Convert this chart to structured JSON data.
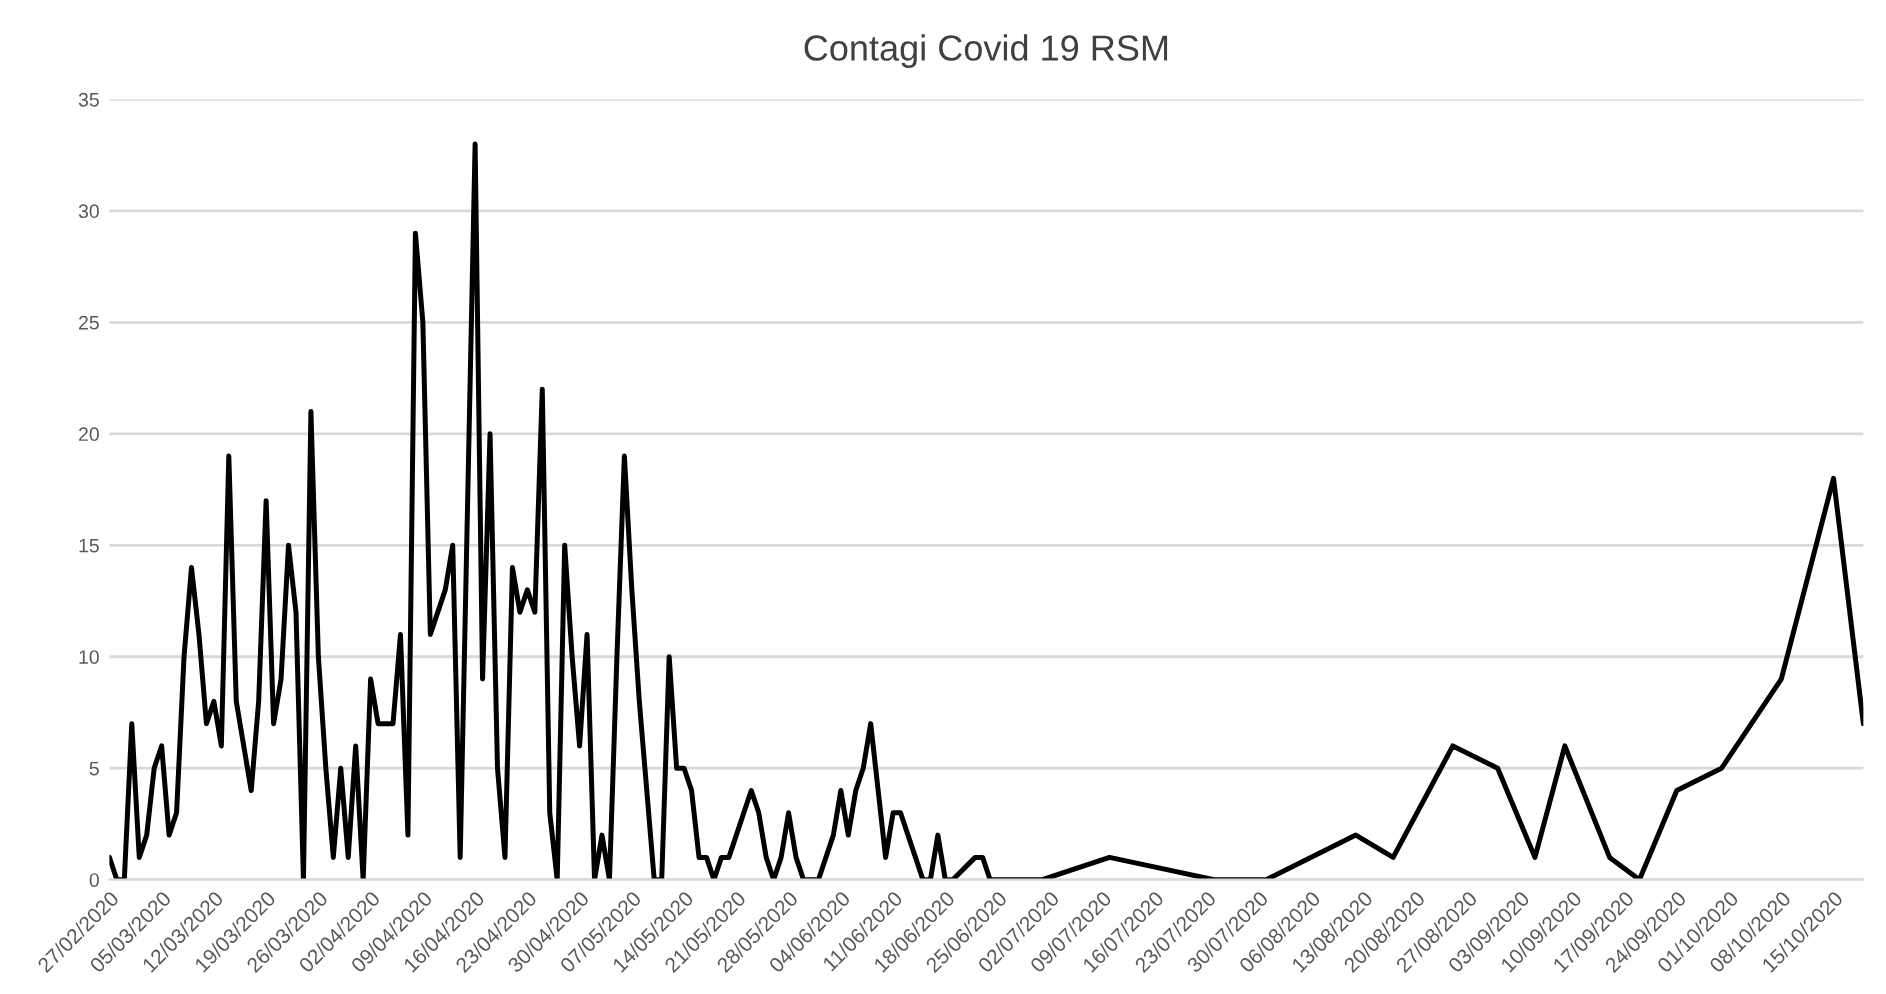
{
  "chart_data": {
    "type": "line",
    "title": "Contagi Covid 19 RSM",
    "x": [
      "2020-02-27",
      "2020-02-28",
      "2020-02-29",
      "2020-03-01",
      "2020-03-02",
      "2020-03-03",
      "2020-03-04",
      "2020-03-05",
      "2020-03-06",
      "2020-03-07",
      "2020-03-08",
      "2020-03-09",
      "2020-03-10",
      "2020-03-11",
      "2020-03-12",
      "2020-03-13",
      "2020-03-14",
      "2020-03-15",
      "2020-03-16",
      "2020-03-17",
      "2020-03-18",
      "2020-03-19",
      "2020-03-20",
      "2020-03-21",
      "2020-03-22",
      "2020-03-23",
      "2020-03-24",
      "2020-03-25",
      "2020-03-26",
      "2020-03-27",
      "2020-03-28",
      "2020-03-29",
      "2020-03-30",
      "2020-03-31",
      "2020-04-01",
      "2020-04-02",
      "2020-04-03",
      "2020-04-04",
      "2020-04-05",
      "2020-04-06",
      "2020-04-07",
      "2020-04-08",
      "2020-04-09",
      "2020-04-10",
      "2020-04-11",
      "2020-04-12",
      "2020-04-13",
      "2020-04-14",
      "2020-04-16",
      "2020-04-17",
      "2020-04-18",
      "2020-04-19",
      "2020-04-20",
      "2020-04-21",
      "2020-04-22",
      "2020-04-23",
      "2020-04-24",
      "2020-04-25",
      "2020-04-26",
      "2020-04-27",
      "2020-04-28",
      "2020-04-29",
      "2020-04-30",
      "2020-05-01",
      "2020-05-02",
      "2020-05-03",
      "2020-05-04",
      "2020-05-05",
      "2020-05-06",
      "2020-05-07",
      "2020-05-08",
      "2020-05-09",
      "2020-05-10",
      "2020-05-11",
      "2020-05-12",
      "2020-05-13",
      "2020-05-14",
      "2020-05-15",
      "2020-05-16",
      "2020-05-17",
      "2020-05-18",
      "2020-05-19",
      "2020-05-20",
      "2020-05-21",
      "2020-05-22",
      "2020-05-23",
      "2020-05-24",
      "2020-05-25",
      "2020-05-26",
      "2020-05-27",
      "2020-05-28",
      "2020-05-29",
      "2020-05-30",
      "2020-05-31",
      "2020-06-01",
      "2020-06-02",
      "2020-06-03",
      "2020-06-04",
      "2020-06-05",
      "2020-06-06",
      "2020-06-07",
      "2020-06-08",
      "2020-06-09",
      "2020-06-10",
      "2020-06-11",
      "2020-06-12",
      "2020-06-13",
      "2020-06-14",
      "2020-06-15",
      "2020-06-16",
      "2020-06-17",
      "2020-06-18",
      "2020-06-19",
      "2020-06-22",
      "2020-06-23",
      "2020-06-24",
      "2020-07-01",
      "2020-07-10",
      "2020-07-24",
      "2020-07-31",
      "2020-08-12",
      "2020-08-17",
      "2020-08-25",
      "2020-08-31",
      "2020-09-05",
      "2020-09-09",
      "2020-09-15",
      "2020-09-19",
      "2020-09-24",
      "2020-09-30",
      "2020-10-08",
      "2020-10-15",
      "2020-10-19"
    ],
    "series": [
      {
        "color": "#000000",
        "values": [
          1,
          0,
          0,
          7,
          1,
          2,
          5,
          6,
          2,
          3,
          10,
          14,
          11,
          7,
          8,
          6,
          19,
          8,
          6,
          4,
          8,
          17,
          7,
          9,
          15,
          12,
          0,
          21,
          10,
          5,
          1,
          5,
          1,
          6,
          0,
          9,
          7,
          7,
          7,
          11,
          2,
          29,
          25,
          11,
          12,
          13,
          15,
          1,
          33,
          9,
          20,
          5,
          1,
          14,
          12,
          13,
          12,
          22,
          3,
          0,
          15,
          10,
          6,
          11,
          0,
          2,
          0,
          10,
          19,
          13,
          8,
          4,
          0,
          0,
          10,
          5,
          5,
          4,
          1,
          1,
          0,
          1,
          1,
          2,
          3,
          4,
          3,
          1,
          0,
          1,
          3,
          1,
          0,
          0,
          0,
          1,
          2,
          4,
          2,
          4,
          5,
          7,
          4,
          1,
          3,
          3,
          2,
          1,
          0,
          0,
          2,
          0,
          0,
          1,
          1,
          0,
          0,
          1,
          0,
          0,
          2,
          1,
          6,
          5,
          1,
          6,
          1,
          0,
          4,
          5,
          9,
          18,
          7
        ]
      }
    ],
    "xlim": [
      "2020-02-27",
      "2020-10-19"
    ],
    "xticks": [
      {
        "value": "2020-02-27",
        "label": "27/02/2020"
      },
      {
        "value": "2020-03-05",
        "label": "05/03/2020"
      },
      {
        "value": "2020-03-12",
        "label": "12/03/2020"
      },
      {
        "value": "2020-03-19",
        "label": "19/03/2020"
      },
      {
        "value": "2020-03-26",
        "label": "26/03/2020"
      },
      {
        "value": "2020-04-02",
        "label": "02/04/2020"
      },
      {
        "value": "2020-04-09",
        "label": "09/04/2020"
      },
      {
        "value": "2020-04-16",
        "label": "16/04/2020"
      },
      {
        "value": "2020-04-23",
        "label": "23/04/2020"
      },
      {
        "value": "2020-04-30",
        "label": "30/04/2020"
      },
      {
        "value": "2020-05-07",
        "label": "07/05/2020"
      },
      {
        "value": "2020-05-14",
        "label": "14/05/2020"
      },
      {
        "value": "2020-05-21",
        "label": "21/05/2020"
      },
      {
        "value": "2020-05-28",
        "label": "28/05/2020"
      },
      {
        "value": "2020-06-04",
        "label": "04/06/2020"
      },
      {
        "value": "2020-06-11",
        "label": "11/06/2020"
      },
      {
        "value": "2020-06-18",
        "label": "18/06/2020"
      },
      {
        "value": "2020-06-25",
        "label": "25/06/2020"
      },
      {
        "value": "2020-07-02",
        "label": "02/07/2020"
      },
      {
        "value": "2020-07-09",
        "label": "09/07/2020"
      },
      {
        "value": "2020-07-16",
        "label": "16/07/2020"
      },
      {
        "value": "2020-07-23",
        "label": "23/07/2020"
      },
      {
        "value": "2020-07-30",
        "label": "30/07/2020"
      },
      {
        "value": "2020-08-06",
        "label": "06/08/2020"
      },
      {
        "value": "2020-08-13",
        "label": "13/08/2020"
      },
      {
        "value": "2020-08-20",
        "label": "20/08/2020"
      },
      {
        "value": "2020-08-27",
        "label": "27/08/2020"
      },
      {
        "value": "2020-09-03",
        "label": "03/09/2020"
      },
      {
        "value": "2020-09-10",
        "label": "10/09/2020"
      },
      {
        "value": "2020-09-17",
        "label": "17/09/2020"
      },
      {
        "value": "2020-09-24",
        "label": "24/09/2020"
      },
      {
        "value": "2020-10-01",
        "label": "01/10/2020"
      },
      {
        "value": "2020-10-08",
        "label": "08/10/2020"
      },
      {
        "value": "2020-10-15",
        "label": "15/10/2020"
      }
    ],
    "ylim": [
      0,
      35
    ],
    "yticks": [
      0,
      5,
      10,
      15,
      20,
      25,
      30,
      35
    ],
    "grid": "y",
    "marker": "none",
    "line_style": "solid",
    "legend": false
  }
}
